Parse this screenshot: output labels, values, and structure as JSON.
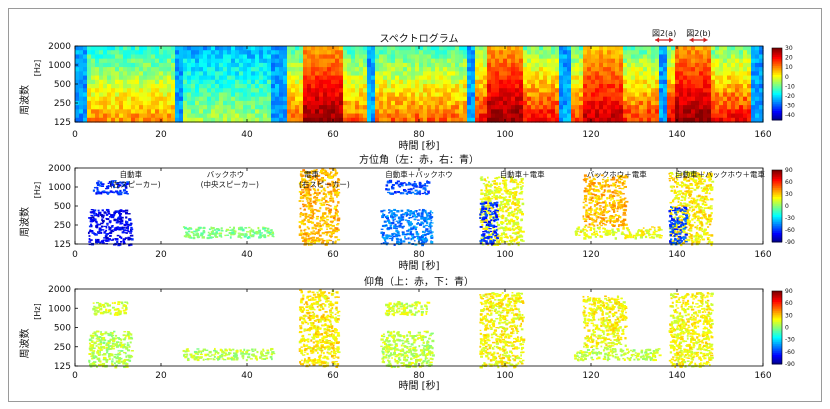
{
  "chart_data": [
    {
      "type": "heatmap",
      "title": "スペクトログラム",
      "xlabel": "時間 [秒]",
      "ylabel": "周波数",
      "yunit": "[Hz]",
      "xlim": [
        0,
        160
      ],
      "xticks": [
        0,
        20,
        40,
        60,
        80,
        100,
        120,
        140,
        160
      ],
      "yticks": [
        "2000",
        "1000",
        "500",
        "250",
        "125"
      ],
      "colorbar_ticks": [
        "30",
        "20",
        "10",
        "0",
        "-10",
        "-20",
        "-30",
        "-40"
      ],
      "colorbar_range": [
        -45,
        30
      ],
      "annotations": [
        "図2(a)",
        "図2(b)"
      ],
      "annotation_x": [
        137,
        145
      ],
      "events": [
        {
          "start": 3,
          "end": 23,
          "level": 0.75
        },
        {
          "start": 25,
          "end": 46,
          "level": 0.55
        },
        {
          "start": 49,
          "end": 68,
          "level": 0.8
        },
        {
          "start": 70,
          "end": 91,
          "level": 0.8
        },
        {
          "start": 93,
          "end": 113,
          "level": 0.9
        },
        {
          "start": 115,
          "end": 136,
          "level": 0.85
        },
        {
          "start": 138,
          "end": 157,
          "level": 0.9
        }
      ],
      "hot_regions": [
        {
          "start": 53,
          "end": 62,
          "level": 1.0
        },
        {
          "start": 96,
          "end": 104,
          "level": 1.0
        },
        {
          "start": 118,
          "end": 127,
          "level": 0.95
        },
        {
          "start": 140,
          "end": 148,
          "level": 1.0
        }
      ]
    },
    {
      "type": "scatter",
      "title": "方位角（左：赤，右：青）",
      "xlabel": "時間 [秒]",
      "ylabel": "周波数",
      "yunit": "[Hz]",
      "xlim": [
        0,
        160
      ],
      "xticks": [
        0,
        20,
        40,
        60,
        80,
        100,
        120,
        140,
        160
      ],
      "yticks": [
        "2000",
        "1000",
        "500",
        "250",
        "125"
      ],
      "colorbar_ticks": [
        "90",
        "60",
        "30",
        "0",
        "-30",
        "-60",
        "-90"
      ],
      "colorbar_range": [
        -90,
        90
      ],
      "labels": [
        {
          "text": "自動車",
          "x": 13,
          "row": 0
        },
        {
          "text": "(左スピーカー)",
          "x": 14,
          "row": 1
        },
        {
          "text": "バックホウ",
          "x": 35,
          "row": 0
        },
        {
          "text": "(中央スピーカー)",
          "x": 36,
          "row": 1
        },
        {
          "text": "電車",
          "x": 55,
          "row": 0
        },
        {
          "text": "(右スピーカー)",
          "x": 58,
          "row": 1
        },
        {
          "text": "自動車＋バックホウ",
          "x": 80,
          "row": 0
        },
        {
          "text": "自動車＋電車",
          "x": 104,
          "row": 0
        },
        {
          "text": "バックホウ＋電車",
          "x": 126,
          "row": 0
        },
        {
          "text": "自動車＋バックホウ＋電車",
          "x": 150,
          "row": 0
        }
      ],
      "blobs": [
        {
          "start": 3,
          "end": 13,
          "f_lo": 125,
          "f_hi": 450,
          "value": -70
        },
        {
          "start": 4,
          "end": 12,
          "f_lo": 800,
          "f_hi": 1300,
          "value": -60
        },
        {
          "start": 25,
          "end": 46,
          "f_lo": 160,
          "f_hi": 240,
          "value": 0
        },
        {
          "start": 52,
          "end": 61,
          "f_lo": 125,
          "f_hi": 2000,
          "value": 35
        },
        {
          "start": 71,
          "end": 83,
          "f_lo": 125,
          "f_hi": 450,
          "value": -45
        },
        {
          "start": 72,
          "end": 82,
          "f_lo": 800,
          "f_hi": 1300,
          "value": -55
        },
        {
          "start": 94,
          "end": 104,
          "f_lo": 125,
          "f_hi": 1500,
          "value": 20
        },
        {
          "start": 94,
          "end": 98,
          "f_lo": 125,
          "f_hi": 600,
          "value": -60
        },
        {
          "start": 118,
          "end": 128,
          "f_lo": 250,
          "f_hi": 1600,
          "value": 35
        },
        {
          "start": 116,
          "end": 136,
          "f_lo": 160,
          "f_hi": 240,
          "value": 20
        },
        {
          "start": 138,
          "end": 148,
          "f_lo": 125,
          "f_hi": 1800,
          "value": 25
        },
        {
          "start": 138,
          "end": 142,
          "f_lo": 125,
          "f_hi": 500,
          "value": -55
        }
      ]
    },
    {
      "type": "scatter",
      "title": "仰角（上：赤，下：青）",
      "xlabel": "時間 [秒]",
      "ylabel": "周波数",
      "yunit": "[Hz]",
      "xlim": [
        0,
        160
      ],
      "xticks": [
        0,
        20,
        40,
        60,
        80,
        100,
        120,
        140,
        160
      ],
      "yticks": [
        "2000",
        "1000",
        "500",
        "250",
        "125"
      ],
      "colorbar_ticks": [
        "90",
        "60",
        "30",
        "0",
        "-30",
        "-60",
        "-90"
      ],
      "colorbar_range": [
        -90,
        90
      ],
      "blobs": [
        {
          "start": 3,
          "end": 13,
          "f_lo": 125,
          "f_hi": 450,
          "value": 10
        },
        {
          "start": 4,
          "end": 12,
          "f_lo": 800,
          "f_hi": 1300,
          "value": 15
        },
        {
          "start": 25,
          "end": 46,
          "f_lo": 160,
          "f_hi": 240,
          "value": 10
        },
        {
          "start": 52,
          "end": 61,
          "f_lo": 125,
          "f_hi": 2000,
          "value": 25
        },
        {
          "start": 71,
          "end": 83,
          "f_lo": 125,
          "f_hi": 450,
          "value": 12
        },
        {
          "start": 72,
          "end": 82,
          "f_lo": 800,
          "f_hi": 1300,
          "value": 15
        },
        {
          "start": 94,
          "end": 104,
          "f_lo": 125,
          "f_hi": 1800,
          "value": 22
        },
        {
          "start": 116,
          "end": 136,
          "f_lo": 160,
          "f_hi": 240,
          "value": 12
        },
        {
          "start": 118,
          "end": 128,
          "f_lo": 250,
          "f_hi": 1600,
          "value": 22
        },
        {
          "start": 138,
          "end": 148,
          "f_lo": 125,
          "f_hi": 1800,
          "value": 22
        }
      ]
    }
  ]
}
